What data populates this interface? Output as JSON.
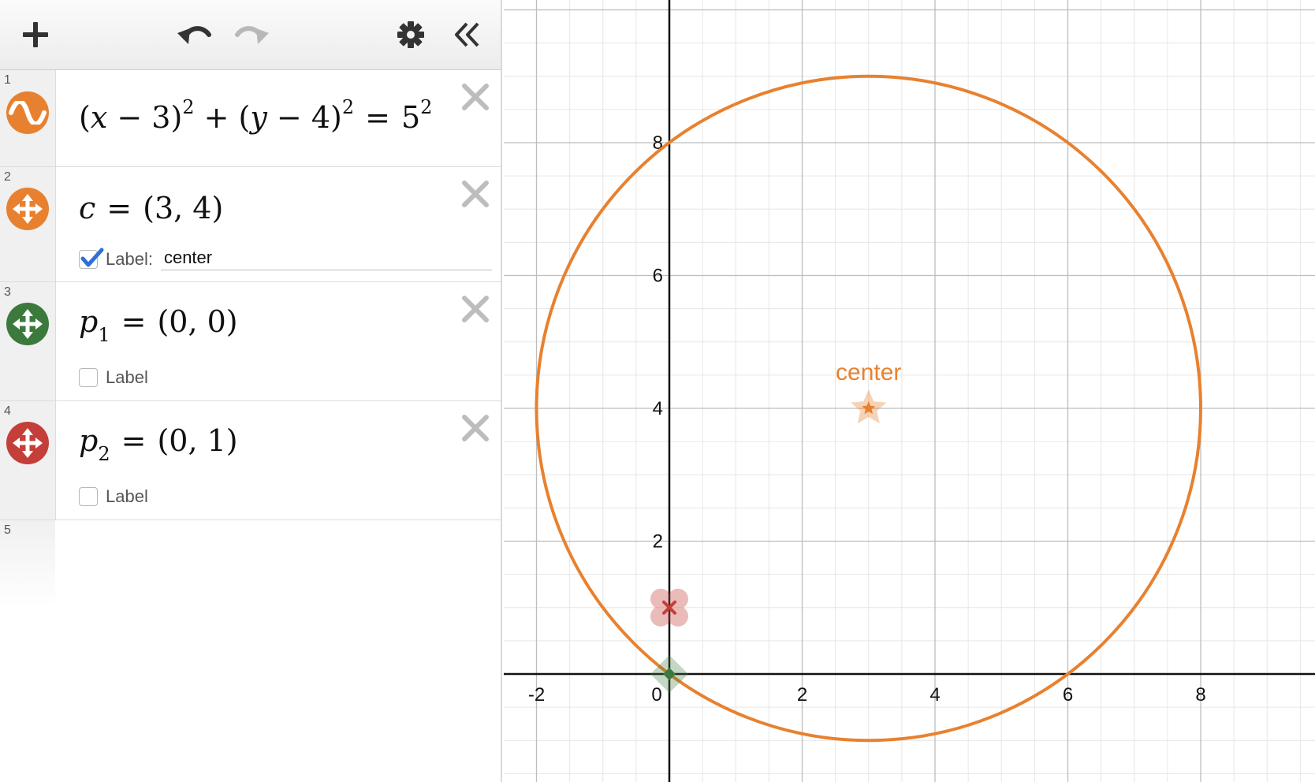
{
  "toolbar": {
    "add": "plus-icon",
    "undo": "undo-icon",
    "redo": "redo-icon",
    "settings": "gear-icon",
    "collapse": "double-chevron-left-icon"
  },
  "expressions": [
    {
      "num": "1",
      "kind": "function",
      "color": "#e8812f",
      "latex": {
        "a": "(",
        "x": "x",
        "m1": " − 3)",
        "e1": "2",
        "plus": " + (",
        "y": "y",
        "m2": " − 4)",
        "e2": "2",
        "eq": "=",
        "rhs": "5",
        "e3": "2"
      }
    },
    {
      "num": "2",
      "kind": "point",
      "color": "#e8812f",
      "latex": {
        "lhs": "c",
        "eq": "=",
        "rhs": "(3, 4)"
      },
      "label_checked": true,
      "label_text": "Label:",
      "label_value": "center"
    },
    {
      "num": "3",
      "kind": "point",
      "color": "#3b7a3c",
      "latex": {
        "lhs": "p",
        "sub": "1",
        "eq": "=",
        "rhs": "(0, 0)"
      },
      "label_checked": false,
      "label_text": "Label"
    },
    {
      "num": "4",
      "kind": "point",
      "color": "#c43f3a",
      "latex": {
        "lhs": "p",
        "sub": "2",
        "eq": "=",
        "rhs": "(0, 1)"
      },
      "label_checked": false,
      "label_text": "Label"
    },
    {
      "num": "5",
      "kind": "empty"
    }
  ],
  "chart_data": {
    "type": "scatter",
    "x_ticks": [
      "-2",
      "0",
      "2",
      "4",
      "6",
      "8"
    ],
    "y_ticks": [
      "2",
      "4",
      "6",
      "8"
    ],
    "xlim": [
      -2.5,
      9.6
    ],
    "ylim": [
      -1.5,
      9.5
    ],
    "grid": true,
    "curves": [
      {
        "type": "circle",
        "center": [
          3,
          4
        ],
        "radius": 5,
        "color": "#e8812f"
      }
    ],
    "points": [
      {
        "name": "c",
        "x": 3,
        "y": 4,
        "label": "center",
        "style": "star",
        "color": "#e8812f"
      },
      {
        "name": "p1",
        "x": 0,
        "y": 0,
        "style": "diamond",
        "color": "#3b7a3c"
      },
      {
        "name": "p2",
        "x": 0,
        "y": 1,
        "style": "cross",
        "color": "#c43f3a"
      }
    ]
  }
}
